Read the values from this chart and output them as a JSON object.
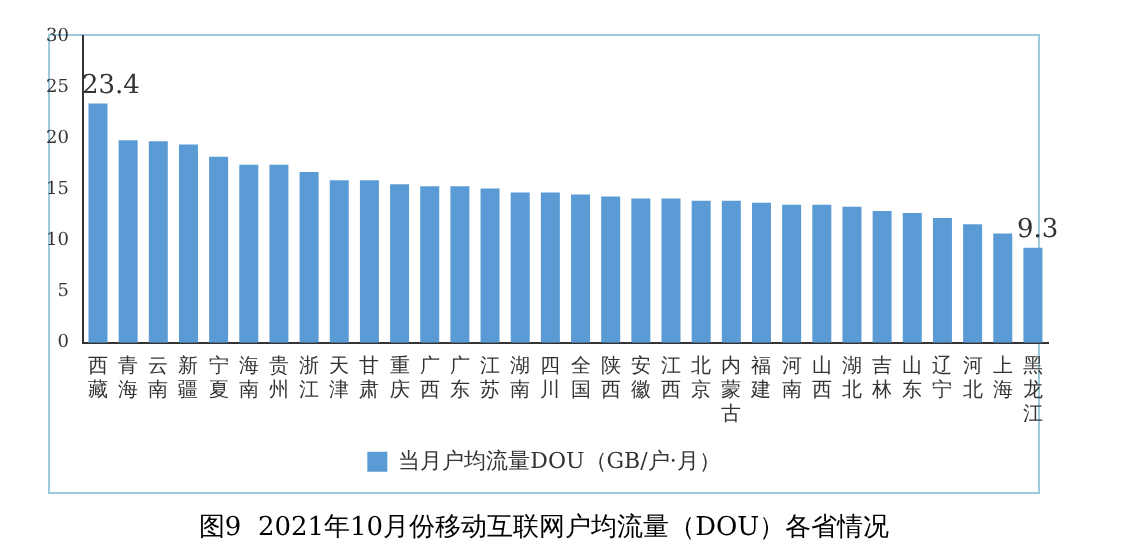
{
  "chart_data": {
    "type": "bar",
    "title": "图9  2021年10月份移动互联网户均流量（DOU）各省情况",
    "categories": [
      "西藏",
      "青海",
      "云南",
      "新疆",
      "宁夏",
      "海南",
      "贵州",
      "浙江",
      "天津",
      "甘肃",
      "重庆",
      "广西",
      "广东",
      "江苏",
      "湖南",
      "四川",
      "全国",
      "陕西",
      "安徽",
      "江西",
      "北京",
      "内蒙古",
      "福建",
      "河南",
      "山西",
      "湖北",
      "吉林",
      "山东",
      "辽宁",
      "河北",
      "上海",
      "黑龙江"
    ],
    "series": [
      {
        "name": "当月户均流量DOU（GB/户·月）",
        "color": "#5b9bd5",
        "values": [
          23.4,
          19.8,
          19.7,
          19.4,
          18.2,
          17.4,
          17.4,
          16.7,
          15.9,
          15.9,
          15.5,
          15.3,
          15.3,
          15.1,
          14.7,
          14.7,
          14.5,
          14.3,
          14.1,
          14.1,
          13.9,
          13.9,
          13.7,
          13.5,
          13.5,
          13.3,
          12.9,
          12.7,
          12.2,
          11.6,
          10.7,
          9.3
        ],
        "value_labels": [
          "23.4",
          null,
          null,
          null,
          null,
          null,
          null,
          null,
          null,
          null,
          null,
          null,
          null,
          null,
          null,
          null,
          null,
          null,
          null,
          null,
          null,
          null,
          null,
          null,
          null,
          null,
          null,
          null,
          null,
          null,
          null,
          "9.3"
        ]
      }
    ],
    "ylim": [
      0,
      30
    ],
    "yticks": [
      0,
      5,
      10,
      15,
      20,
      25,
      30
    ],
    "grid": false,
    "legend": "bottom"
  }
}
